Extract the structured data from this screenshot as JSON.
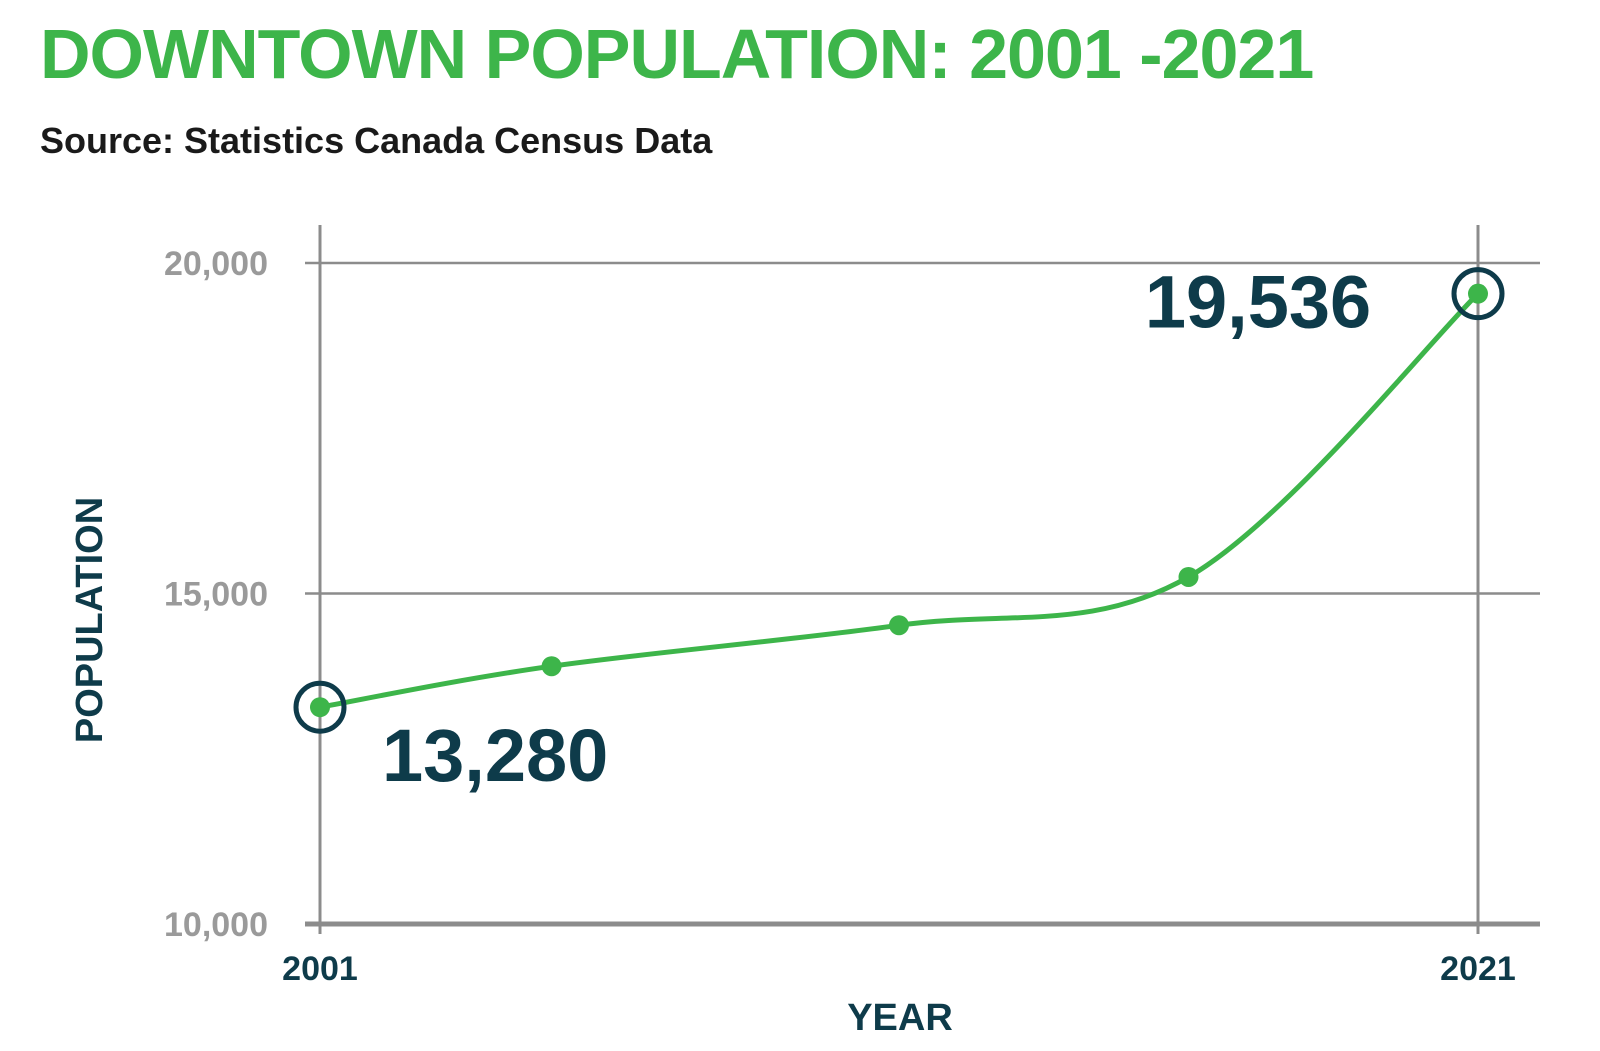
{
  "header": {
    "title": "DOWNTOWN POPULATION: 2001 -2021",
    "subtitle": "Source: Statistics Canada Census Data"
  },
  "colors": {
    "line": "#3db54a",
    "title": "#3db54a",
    "label": "#0e3b4a",
    "grid": "#8c8c8c",
    "tick": "#9a9a9a"
  },
  "chart_data": {
    "type": "line",
    "title": "DOWNTOWN POPULATION: 2001 -2021",
    "subtitle": "Source: Statistics Canada Census Data",
    "xlabel": "YEAR",
    "ylabel": "POPULATION",
    "x_tick_labels": [
      "2001",
      "2021"
    ],
    "y_tick_labels": [
      "10,000",
      "15,000",
      "20,000"
    ],
    "x": [
      2001,
      2005,
      2011,
      2016,
      2021
    ],
    "xlim": [
      2001,
      2021
    ],
    "ylim": [
      10000,
      20000
    ],
    "y_ticks": [
      10000,
      15000,
      20000
    ],
    "grid": true,
    "series": [
      {
        "values": [
          13280,
          13900,
          14520,
          15250,
          19536
        ]
      }
    ],
    "annotations": [
      {
        "x": 2001,
        "y": 13280,
        "label": "13,280"
      },
      {
        "x": 2021,
        "y": 19536,
        "label": "19,536"
      }
    ]
  }
}
